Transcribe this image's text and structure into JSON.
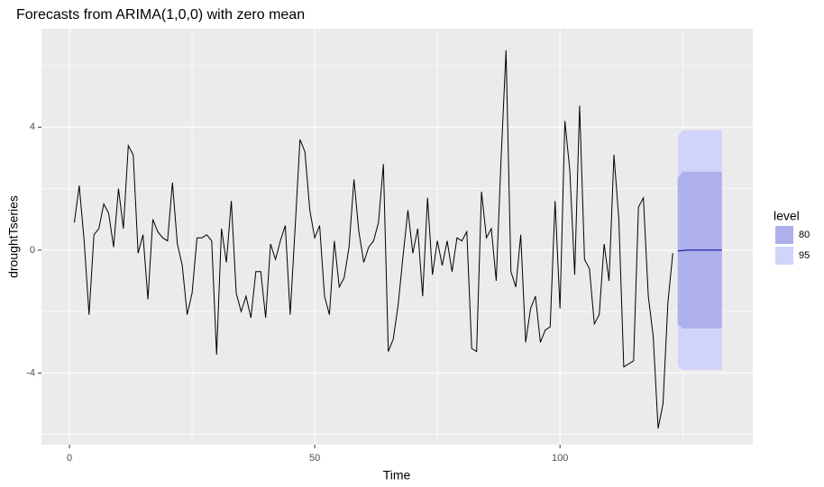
{
  "chart_data": {
    "type": "line",
    "title": "Forecasts from ARIMA(1,0,0) with zero mean",
    "x_label": "Time",
    "y_label": "droughtTseries",
    "xlim": [
      -5.7,
      139.3
    ],
    "ylim": [
      -6.33,
      7.2
    ],
    "xticks": [
      0,
      50,
      100
    ],
    "yticks": [
      -4,
      0,
      4
    ],
    "x_minor_ticks": [
      25,
      75,
      125
    ],
    "y_minor_ticks": [
      -6,
      -2,
      2,
      6
    ],
    "grid": true,
    "color": "#000000",
    "x": [
      1,
      2,
      3,
      4,
      5,
      6,
      7,
      8,
      9,
      10,
      11,
      12,
      13,
      14,
      15,
      16,
      17,
      18,
      19,
      20,
      21,
      22,
      23,
      24,
      25,
      26,
      27,
      28,
      29,
      30,
      31,
      32,
      33,
      34,
      35,
      36,
      37,
      38,
      39,
      40,
      41,
      42,
      43,
      44,
      45,
      46,
      47,
      48,
      49,
      50,
      51,
      52,
      53,
      54,
      55,
      56,
      57,
      58,
      59,
      60,
      61,
      62,
      63,
      64,
      65,
      66,
      67,
      68,
      69,
      70,
      71,
      72,
      73,
      74,
      75,
      76,
      77,
      78,
      79,
      80,
      81,
      82,
      83,
      84,
      85,
      86,
      87,
      88,
      89,
      90,
      91,
      92,
      93,
      94,
      95,
      96,
      97,
      98,
      99,
      100,
      101,
      102,
      103,
      104,
      105,
      106,
      107,
      108,
      109,
      110,
      111,
      112,
      113,
      114,
      115,
      116,
      117,
      118,
      119,
      120,
      121,
      122,
      123
    ],
    "values": [
      0.9,
      2.1,
      0.3,
      -2.1,
      0.5,
      0.7,
      1.5,
      1.2,
      0.1,
      2.0,
      0.7,
      3.4,
      3.1,
      -0.1,
      0.5,
      -1.6,
      1.0,
      0.6,
      0.4,
      0.3,
      2.2,
      0.2,
      -0.5,
      -2.1,
      -1.4,
      0.4,
      0.4,
      0.5,
      0.3,
      -3.4,
      0.7,
      -0.4,
      1.6,
      -1.4,
      -2.0,
      -1.5,
      -2.2,
      -0.7,
      -0.7,
      -2.2,
      0.2,
      -0.3,
      0.3,
      0.8,
      -2.1,
      0.7,
      3.6,
      3.2,
      1.3,
      0.4,
      0.8,
      -1.5,
      -2.1,
      0.3,
      -1.2,
      -0.9,
      0.1,
      2.3,
      0.6,
      -0.4,
      0.1,
      0.3,
      0.9,
      2.8,
      -3.3,
      -2.9,
      -1.8,
      -0.2,
      1.3,
      -0.1,
      0.7,
      -1.5,
      1.7,
      -0.8,
      0.3,
      -0.5,
      0.3,
      -0.7,
      0.4,
      0.3,
      0.6,
      -3.2,
      -3.3,
      1.9,
      0.4,
      0.7,
      -1.0,
      3.0,
      6.5,
      -0.7,
      -1.2,
      0.5,
      -3.0,
      -1.9,
      -1.5,
      -3.0,
      -2.6,
      -2.5,
      1.6,
      -1.9,
      4.2,
      2.6,
      -0.8,
      4.7,
      -0.3,
      -0.6,
      -2.4,
      -2.1,
      0.2,
      -1.0,
      3.1,
      1.0,
      -3.8,
      -3.7,
      -3.6,
      1.4,
      1.7,
      -1.5,
      -2.8,
      -5.8,
      -5.0,
      -1.7,
      -0.1
    ],
    "forecast": {
      "x": [
        124,
        125,
        126,
        127,
        128,
        129,
        130,
        131,
        132,
        133
      ],
      "mean": [
        -0.03,
        -0.01,
        0,
        0,
        0,
        0,
        0,
        0,
        0,
        0
      ],
      "color": "#00008b",
      "legend_title": "level",
      "intervals": [
        {
          "name": "80",
          "color": "#aeb0ee",
          "lower": [
            -2.4,
            -2.55,
            -2.55,
            -2.55,
            -2.55,
            -2.55,
            -2.55,
            -2.55,
            -2.55,
            -2.55
          ],
          "upper": [
            2.35,
            2.55,
            2.55,
            2.55,
            2.55,
            2.55,
            2.55,
            2.55,
            2.55,
            2.55
          ]
        },
        {
          "name": "95",
          "color": "#d2d3fb",
          "lower": [
            -3.78,
            -3.9,
            -3.9,
            -3.9,
            -3.9,
            -3.9,
            -3.9,
            -3.9,
            -3.9,
            -3.9
          ],
          "upper": [
            3.7,
            3.9,
            3.9,
            3.9,
            3.9,
            3.9,
            3.9,
            3.9,
            3.9,
            3.9
          ]
        }
      ]
    }
  }
}
